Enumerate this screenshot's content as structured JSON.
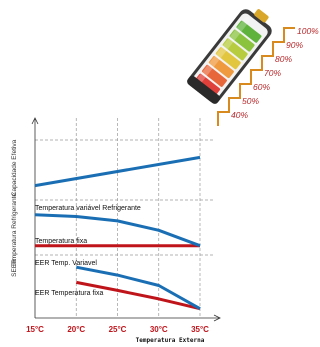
{
  "chart_data": {
    "type": "line",
    "xlabel": "Temperatura Externa",
    "x_ticks": [
      "15°C",
      "20°C",
      "25°C",
      "30°C",
      "35°C"
    ],
    "x": [
      15,
      20,
      25,
      30,
      35
    ],
    "panels": [
      {
        "ylabel": "Capacidade Efetiva",
        "series": [
          {
            "values": [
              [
                15,
                0.24
              ],
              [
                35,
                0.71
              ]
            ],
            "color": "#1a6fb4"
          }
        ]
      },
      {
        "ylabel": "Temperatura Refrigerante",
        "series": [
          {
            "name": "Temperatura variável Refrigerante",
            "values": [
              [
                15,
                0.73
              ],
              [
                20,
                0.7
              ],
              [
                25,
                0.62
              ],
              [
                30,
                0.45
              ],
              [
                35,
                0.17
              ]
            ],
            "color": "#1a6fb4"
          },
          {
            "name": "Temperatura fixa",
            "values": [
              [
                15,
                0.17
              ],
              [
                35,
                0.17
              ]
            ],
            "color": "#c0141b"
          }
        ]
      },
      {
        "ylabel": "SEER",
        "series": [
          {
            "name": "EER Temp. Variavel",
            "values": [
              [
                20,
                0.8
              ],
              [
                25,
                0.67
              ],
              [
                30,
                0.5
              ],
              [
                35,
                0.12
              ]
            ],
            "color": "#1a6fb4"
          },
          {
            "name": "EER Temperatura fixa",
            "values": [
              [
                20,
                0.55
              ],
              [
                25,
                0.42
              ],
              [
                30,
                0.28
              ],
              [
                35,
                0.12
              ]
            ],
            "color": "#c0141b"
          }
        ]
      }
    ],
    "grid": "dashed"
  },
  "battery": {
    "levels": [
      "40%",
      "50%",
      "60%",
      "70%",
      "80%",
      "90%",
      "100%"
    ],
    "segment_colors": [
      "#e0403a",
      "#e8673a",
      "#ef9a3e",
      "#e3c640",
      "#b7cd3f",
      "#8bc33f",
      "#5fb33c"
    ],
    "stair_color": "#d98a1e"
  }
}
